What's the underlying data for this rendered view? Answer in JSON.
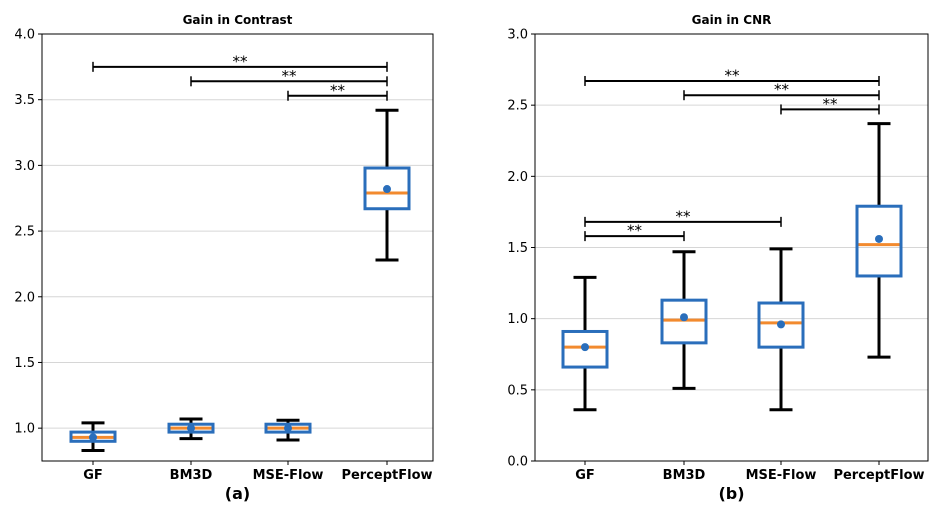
{
  "chart_data": [
    {
      "type": "box",
      "title": "Gain in Contrast",
      "panel_label": "(a)",
      "categories": [
        "GF",
        "BM3D",
        "MSE-Flow",
        "PerceptFlow"
      ],
      "ylim": [
        0.75,
        4.0
      ],
      "yticks": [
        "1.0",
        "1.5",
        "2.0",
        "2.5",
        "3.0",
        "3.5",
        "4.0"
      ],
      "grid": "horizontal",
      "boxes": [
        {
          "whisker_low": 0.83,
          "q1": 0.9,
          "median": 0.93,
          "q3": 0.97,
          "whisker_high": 1.04,
          "mean": 0.93
        },
        {
          "whisker_low": 0.92,
          "q1": 0.97,
          "median": 1.0,
          "q3": 1.03,
          "whisker_high": 1.07,
          "mean": 1.0
        },
        {
          "whisker_low": 0.91,
          "q1": 0.97,
          "median": 1.0,
          "q3": 1.03,
          "whisker_high": 1.06,
          "mean": 1.0
        },
        {
          "whisker_low": 2.28,
          "q1": 2.67,
          "median": 2.79,
          "q3": 2.98,
          "whisker_high": 3.42,
          "mean": 2.82
        }
      ],
      "significance": [
        {
          "from": "GF",
          "to": "PerceptFlow",
          "y": 3.75,
          "label": "**"
        },
        {
          "from": "BM3D",
          "to": "PerceptFlow",
          "y": 3.64,
          "label": "**"
        },
        {
          "from": "MSE-Flow",
          "to": "PerceptFlow",
          "y": 3.53,
          "label": "**"
        }
      ]
    },
    {
      "type": "box",
      "title": "Gain in CNR",
      "panel_label": "(b)",
      "categories": [
        "GF",
        "BM3D",
        "MSE-Flow",
        "PerceptFlow"
      ],
      "ylim": [
        0.0,
        3.0
      ],
      "yticks": [
        "0.0",
        "0.5",
        "1.0",
        "1.5",
        "2.0",
        "2.5",
        "3.0"
      ],
      "grid": "horizontal",
      "boxes": [
        {
          "whisker_low": 0.36,
          "q1": 0.66,
          "median": 0.8,
          "q3": 0.91,
          "whisker_high": 1.29,
          "mean": 0.8
        },
        {
          "whisker_low": 0.51,
          "q1": 0.83,
          "median": 0.99,
          "q3": 1.13,
          "whisker_high": 1.47,
          "mean": 1.01
        },
        {
          "whisker_low": 0.36,
          "q1": 0.8,
          "median": 0.97,
          "q3": 1.11,
          "whisker_high": 1.49,
          "mean": 0.96
        },
        {
          "whisker_low": 0.73,
          "q1": 1.3,
          "median": 1.52,
          "q3": 1.79,
          "whisker_high": 2.37,
          "mean": 1.56
        }
      ],
      "significance": [
        {
          "from": "GF",
          "to": "PerceptFlow",
          "y": 2.67,
          "label": "**"
        },
        {
          "from": "BM3D",
          "to": "PerceptFlow",
          "y": 2.57,
          "label": "**"
        },
        {
          "from": "MSE-Flow",
          "to": "PerceptFlow",
          "y": 2.47,
          "label": "**"
        },
        {
          "from": "GF",
          "to": "MSE-Flow",
          "y": 1.68,
          "label": "**"
        },
        {
          "from": "GF",
          "to": "BM3D",
          "y": 1.58,
          "label": "**"
        }
      ]
    }
  ],
  "colors": {
    "box": "#2a6ebb",
    "median": "#f28a2e",
    "mean": "#2a6ebb",
    "whisker": "#000000",
    "grid": "#d6d6d6"
  }
}
